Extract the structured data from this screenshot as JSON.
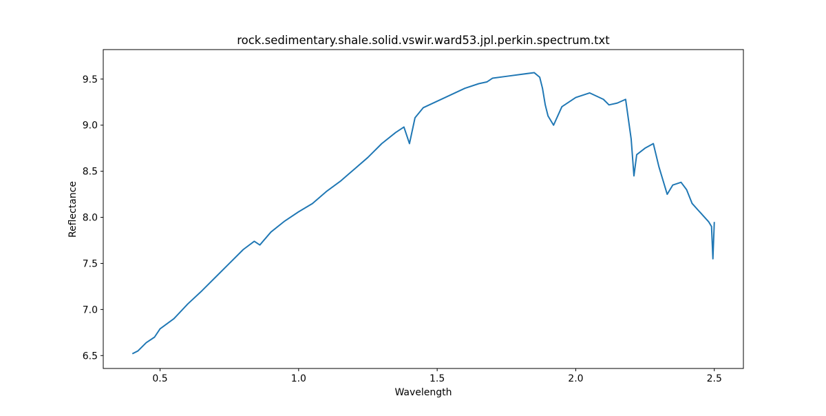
{
  "chart_data": {
    "type": "line",
    "title": "rock.sedimentary.shale.solid.vswir.ward53.jpl.perkin.spectrum.txt",
    "xlabel": "Wavelength",
    "ylabel": "Reflectance",
    "xlim": [
      0.295,
      2.605
    ],
    "ylim": [
      6.36,
      9.82
    ],
    "xticks": [
      0.5,
      1.0,
      1.5,
      2.0,
      2.5
    ],
    "xtick_labels": [
      "0.5",
      "1.0",
      "1.5",
      "2.0",
      "2.5"
    ],
    "yticks": [
      6.5,
      7.0,
      7.5,
      8.0,
      8.5,
      9.0,
      9.5
    ],
    "ytick_labels": [
      "6.5",
      "7.0",
      "7.5",
      "8.0",
      "8.5",
      "9.0",
      "9.5"
    ],
    "grid": false,
    "line_color": "#1f77b4",
    "series": [
      {
        "x": [
          0.4,
          0.42,
          0.45,
          0.48,
          0.5,
          0.55,
          0.6,
          0.65,
          0.7,
          0.75,
          0.8,
          0.84,
          0.86,
          0.9,
          0.95,
          1.0,
          1.05,
          1.1,
          1.15,
          1.2,
          1.25,
          1.3,
          1.35,
          1.38,
          1.4,
          1.42,
          1.45,
          1.5,
          1.55,
          1.6,
          1.65,
          1.68,
          1.7,
          1.75,
          1.8,
          1.85,
          1.87,
          1.88,
          1.89,
          1.9,
          1.92,
          1.95,
          2.0,
          2.05,
          2.1,
          2.12,
          2.15,
          2.18,
          2.2,
          2.21,
          2.22,
          2.25,
          2.28,
          2.3,
          2.33,
          2.35,
          2.38,
          2.4,
          2.42,
          2.45,
          2.48,
          2.49,
          2.495,
          2.5
        ],
        "y": [
          6.52,
          6.55,
          6.64,
          6.7,
          6.79,
          6.9,
          7.06,
          7.2,
          7.35,
          7.5,
          7.65,
          7.74,
          7.7,
          7.84,
          7.96,
          8.06,
          8.15,
          8.28,
          8.39,
          8.52,
          8.65,
          8.8,
          8.92,
          8.98,
          8.8,
          9.08,
          9.19,
          9.26,
          9.33,
          9.4,
          9.45,
          9.47,
          9.51,
          9.53,
          9.55,
          9.57,
          9.52,
          9.4,
          9.22,
          9.1,
          9.0,
          9.2,
          9.3,
          9.35,
          9.28,
          9.22,
          9.24,
          9.28,
          8.85,
          8.45,
          8.68,
          8.75,
          8.8,
          8.55,
          8.25,
          8.35,
          8.38,
          8.3,
          8.15,
          8.05,
          7.95,
          7.9,
          7.55,
          7.95
        ]
      }
    ]
  }
}
